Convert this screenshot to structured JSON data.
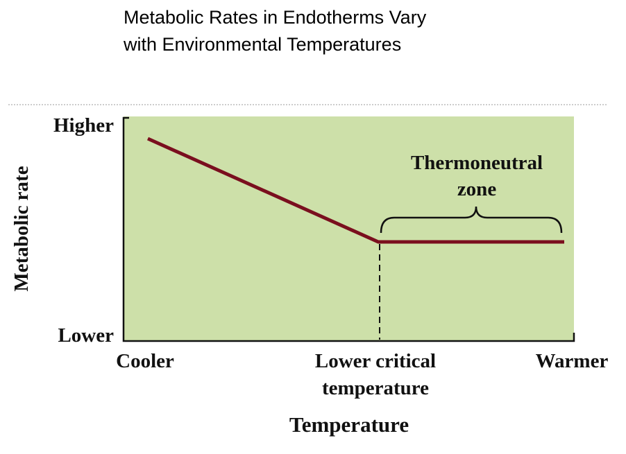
{
  "title": {
    "lines": [
      "Metabolic Rates in Endotherms Vary",
      "with Environmental Temperatures"
    ]
  },
  "y_axis": {
    "label": "Metabolic rate",
    "top": "Higher",
    "bottom": "Lower"
  },
  "x_axis": {
    "label": "Temperature",
    "left": "Cooler",
    "middle": [
      "Lower critical",
      "temperature"
    ],
    "right": "Warmer"
  },
  "annotation": {
    "lines": [
      "Thermoneutral",
      "zone"
    ]
  }
}
